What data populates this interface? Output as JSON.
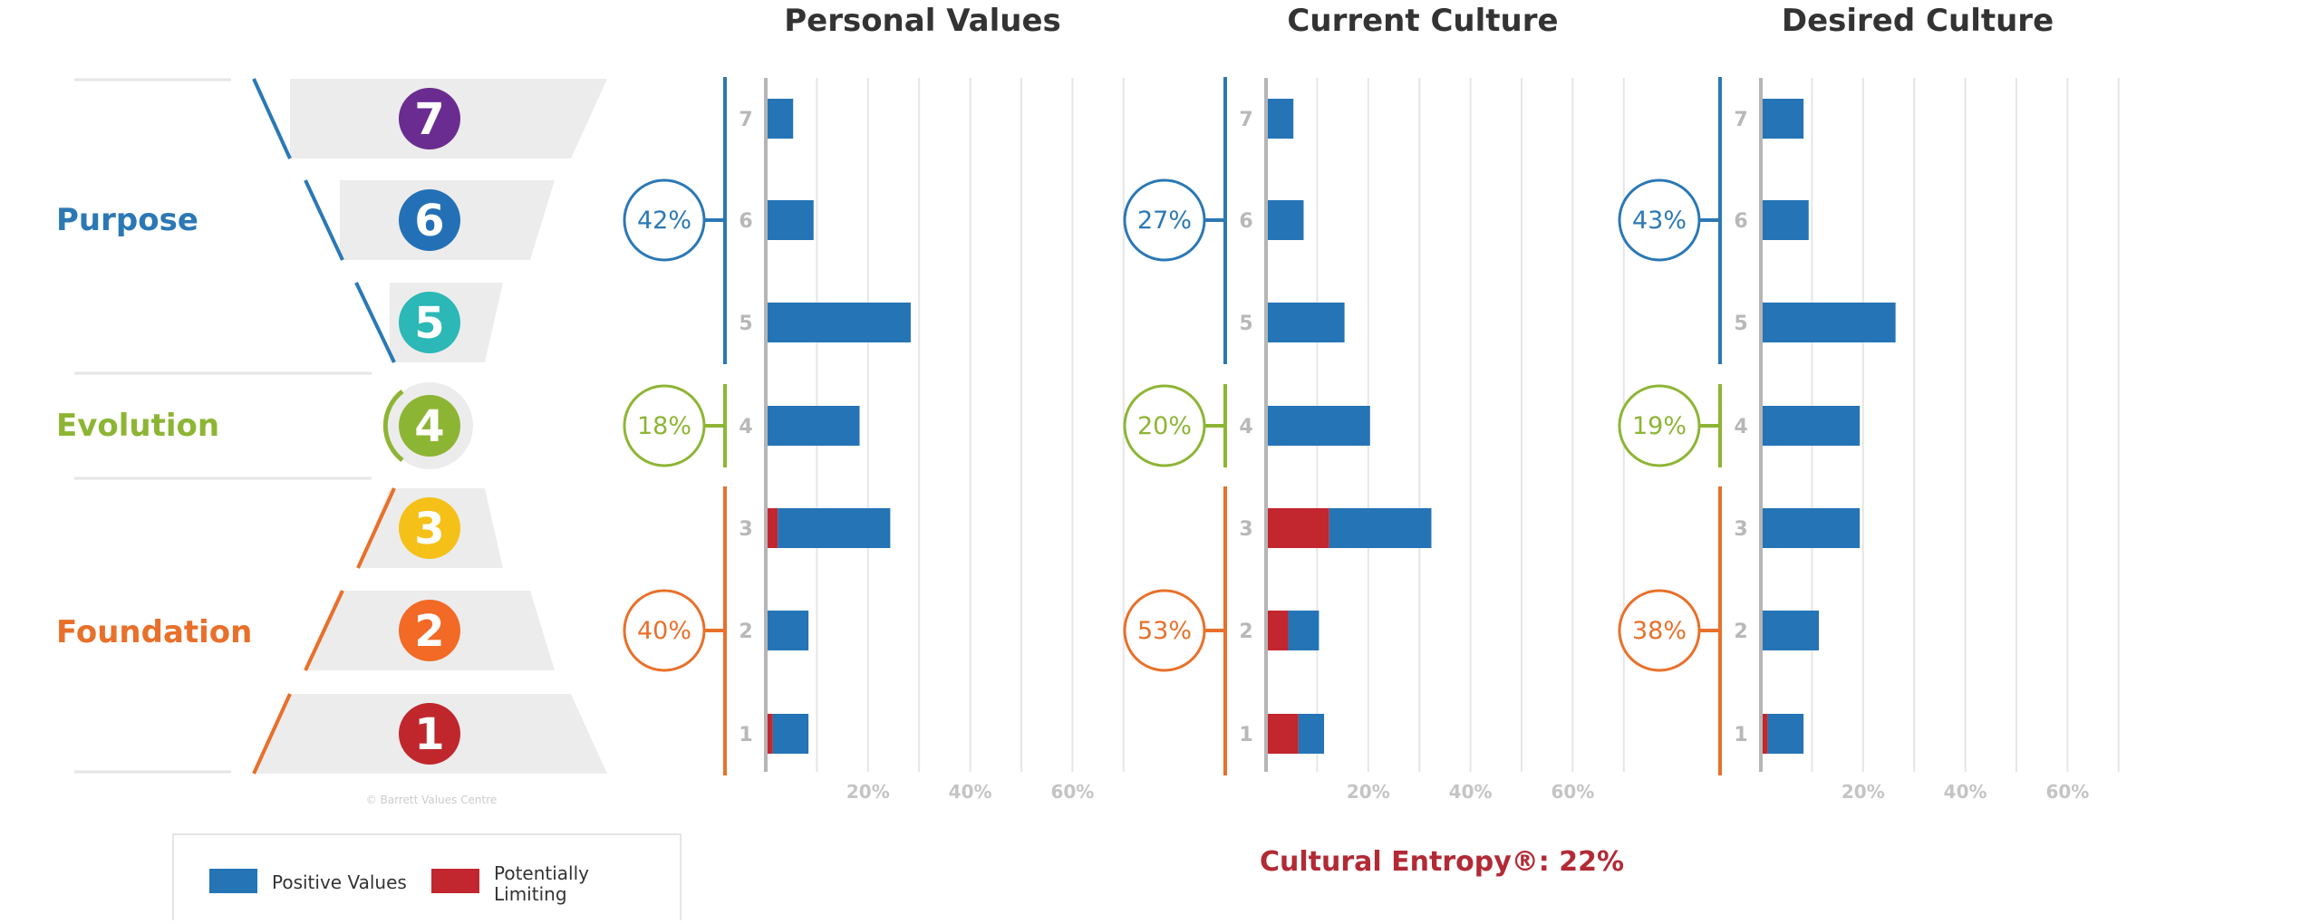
{
  "copyright": "© Barrett Values Centre",
  "levels": [
    {
      "level": 1,
      "label": "1",
      "color": "#c0272d"
    },
    {
      "level": 2,
      "label": "2",
      "color": "#f26a25"
    },
    {
      "level": 3,
      "label": "3",
      "color": "#f5c018"
    },
    {
      "level": 4,
      "label": "4",
      "color": "#8db534"
    },
    {
      "level": 5,
      "label": "5",
      "color": "#2bb8b6"
    },
    {
      "level": 6,
      "label": "6",
      "color": "#2370b6"
    },
    {
      "level": 7,
      "label": "7",
      "color": "#6b2c91"
    }
  ],
  "groups": [
    {
      "label": "Purpose",
      "levels": [
        5,
        7
      ],
      "color": "#2b78b5"
    },
    {
      "label": "Evolution",
      "levels": [
        4,
        4
      ],
      "color": "#8db534"
    },
    {
      "label": "Foundation",
      "levels": [
        1,
        3
      ],
      "color": "#e8702a"
    }
  ],
  "legend": {
    "items": [
      {
        "label": "Positive Values",
        "color": "#2474b6"
      },
      {
        "label": "Potentially\nLimiting",
        "color": "#c2262e"
      }
    ]
  },
  "entropy": {
    "text": "Cultural Entropy®: 22%",
    "color": "#b22a35"
  },
  "chart_data": [
    {
      "type": "bar",
      "orientation": "horizontal",
      "stacked": true,
      "title": "Personal Values",
      "categories": [
        "1",
        "2",
        "3",
        "4",
        "5",
        "6",
        "7"
      ],
      "x_ticks": [
        "20%",
        "40%",
        "60%"
      ],
      "xlim": [
        0,
        70
      ],
      "series": [
        {
          "name": "Potentially Limiting",
          "values": [
            1,
            0,
            2,
            0,
            0,
            0,
            0
          ]
        },
        {
          "name": "Positive Values",
          "values": [
            7,
            8,
            22,
            18,
            28,
            9,
            5
          ]
        }
      ],
      "group_totals": [
        {
          "text": "42%",
          "group": "Purpose"
        },
        {
          "text": "18%",
          "group": "Evolution"
        },
        {
          "text": "40%",
          "group": "Foundation"
        }
      ]
    },
    {
      "type": "bar",
      "orientation": "horizontal",
      "stacked": true,
      "title": "Current Culture",
      "categories": [
        "1",
        "2",
        "3",
        "4",
        "5",
        "6",
        "7"
      ],
      "x_ticks": [
        "20%",
        "40%",
        "60%"
      ],
      "xlim": [
        0,
        70
      ],
      "series": [
        {
          "name": "Potentially Limiting",
          "values": [
            6,
            4,
            12,
            0,
            0,
            0,
            0
          ]
        },
        {
          "name": "Positive Values",
          "values": [
            5,
            6,
            20,
            20,
            15,
            7,
            5
          ]
        }
      ],
      "group_totals": [
        {
          "text": "27%",
          "group": "Purpose"
        },
        {
          "text": "20%",
          "group": "Evolution"
        },
        {
          "text": "53%",
          "group": "Foundation"
        }
      ]
    },
    {
      "type": "bar",
      "orientation": "horizontal",
      "stacked": true,
      "title": "Desired Culture",
      "categories": [
        "1",
        "2",
        "3",
        "4",
        "5",
        "6",
        "7"
      ],
      "x_ticks": [
        "20%",
        "40%",
        "60%"
      ],
      "xlim": [
        0,
        70
      ],
      "series": [
        {
          "name": "Potentially Limiting",
          "values": [
            1,
            0,
            0,
            0,
            0,
            0,
            0
          ]
        },
        {
          "name": "Positive Values",
          "values": [
            7,
            11,
            19,
            19,
            26,
            9,
            8
          ]
        }
      ],
      "group_totals": [
        {
          "text": "43%",
          "group": "Purpose"
        },
        {
          "text": "19%",
          "group": "Evolution"
        },
        {
          "text": "38%",
          "group": "Foundation"
        }
      ]
    }
  ]
}
